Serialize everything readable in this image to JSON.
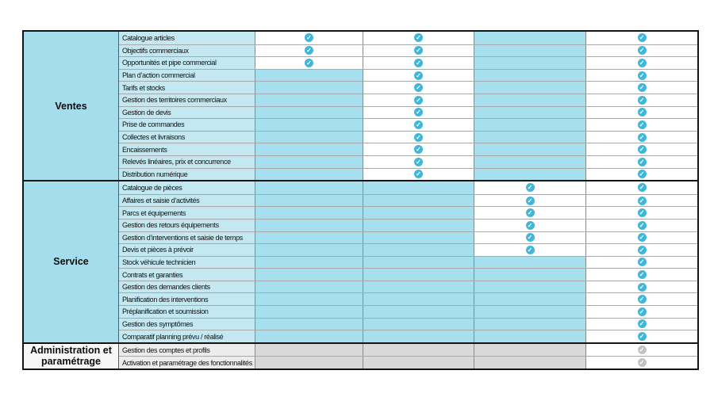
{
  "table": {
    "check_icon": "✓",
    "colors": {
      "section_blue": "#a6ddec",
      "feature_blue": "#c3e8f2",
      "empty_cell_blue": "#a6e0ef",
      "check_blue": "#41b6d9",
      "check_gray": "#c3c3c3",
      "admin_section_bg": "#f7f7f7",
      "admin_feature_bg": "#ececec",
      "admin_cell_gray": "#d9d9d9",
      "border_dark": "#141414"
    },
    "sections": [
      {
        "label": "Ventes",
        "theme": "blue",
        "rows": [
          {
            "feature": "Catalogue articles",
            "cells": [
              "check",
              "check",
              "blue",
              "check"
            ]
          },
          {
            "feature": "Objectifs commerciaux",
            "cells": [
              "check",
              "check",
              "blue",
              "check"
            ]
          },
          {
            "feature": "Opportunités et pipe commercial",
            "cells": [
              "check",
              "check",
              "blue",
              "check"
            ]
          },
          {
            "feature": "Plan d’action commercial",
            "cells": [
              "blue",
              "check",
              "blue",
              "check"
            ]
          },
          {
            "feature": "Tarifs et stocks",
            "cells": [
              "blue",
              "check",
              "blue",
              "check"
            ]
          },
          {
            "feature": "Gestion des territoires commerciaux",
            "cells": [
              "blue",
              "check",
              "blue",
              "check"
            ]
          },
          {
            "feature": "Gestion de devis",
            "cells": [
              "blue",
              "check",
              "blue",
              "check"
            ]
          },
          {
            "feature": "Prise de commandes",
            "cells": [
              "blue",
              "check",
              "blue",
              "check"
            ]
          },
          {
            "feature": "Collectes et livraisons",
            "cells": [
              "blue",
              "check",
              "blue",
              "check"
            ]
          },
          {
            "feature": "Encaissements",
            "cells": [
              "blue",
              "check",
              "blue",
              "check"
            ]
          },
          {
            "feature": "Relevés linéaires, prix et concurrence",
            "cells": [
              "blue",
              "check",
              "blue",
              "check"
            ]
          },
          {
            "feature": "Distribution numérique",
            "cells": [
              "blue",
              "check",
              "blue",
              "check"
            ]
          }
        ]
      },
      {
        "label": "Service",
        "theme": "blue",
        "rows": [
          {
            "feature": "Catalogue de pièces",
            "cells": [
              "blue",
              "blue",
              "check",
              "check"
            ]
          },
          {
            "feature": "Affaires et saisie d’activités",
            "cells": [
              "blue",
              "blue",
              "check",
              "check"
            ]
          },
          {
            "feature": "Parcs et équipements",
            "cells": [
              "blue",
              "blue",
              "check",
              "check"
            ]
          },
          {
            "feature": "Gestion des retours équipements",
            "cells": [
              "blue",
              "blue",
              "check",
              "check"
            ]
          },
          {
            "feature": "Gestion d’interventions et saisie de temps",
            "cells": [
              "blue",
              "blue",
              "check",
              "check"
            ]
          },
          {
            "feature": "Devis et pièces à prévoir",
            "cells": [
              "blue",
              "blue",
              "check",
              "check"
            ]
          },
          {
            "feature": "Stock véhicule technicien",
            "cells": [
              "blue",
              "blue",
              "blue",
              "check"
            ]
          },
          {
            "feature": "Contrats et garanties",
            "cells": [
              "blue",
              "blue",
              "blue",
              "check"
            ]
          },
          {
            "feature": "Gestion des demandes clients",
            "cells": [
              "blue",
              "blue",
              "blue",
              "check"
            ]
          },
          {
            "feature": "Planification des interventions",
            "cells": [
              "blue",
              "blue",
              "blue",
              "check"
            ]
          },
          {
            "feature": "Préplanification et soumission",
            "cells": [
              "blue",
              "blue",
              "blue",
              "check"
            ]
          },
          {
            "feature": "Gestion des symptômes",
            "cells": [
              "blue",
              "blue",
              "blue",
              "check"
            ]
          },
          {
            "feature": "Comparatif planning prévu / réalisé",
            "cells": [
              "blue",
              "blue",
              "blue",
              "check"
            ]
          }
        ]
      },
      {
        "label": "Administration et paramétrage",
        "theme": "gray",
        "rows": [
          {
            "feature": "Gestion des comptes et profils",
            "cells": [
              "gray",
              "gray",
              "gray",
              "check-gray"
            ]
          },
          {
            "feature": "Activation et paramétrage des fonctionnalités",
            "cells": [
              "gray",
              "gray",
              "gray",
              "check-gray"
            ]
          }
        ]
      }
    ]
  }
}
